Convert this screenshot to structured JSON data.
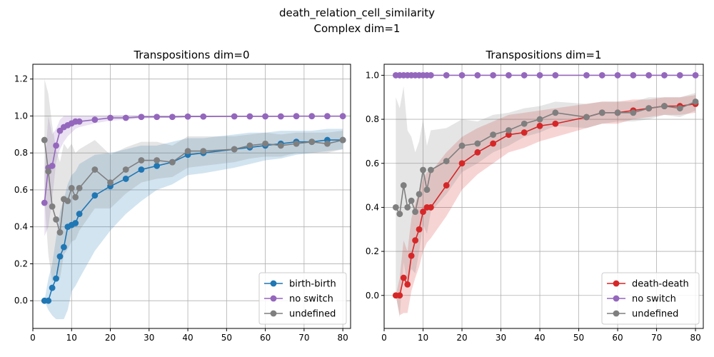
{
  "figure": {
    "suptitle_line1": "death_relation_cell_similarity",
    "suptitle_line2": "Complex dim=1"
  },
  "colors": {
    "birth": "#1f77b4",
    "death": "#d62728",
    "noswitch": "#9467bd",
    "undefined": "#7f7f7f",
    "grid": "#b0b0b0"
  },
  "chart_data": [
    {
      "type": "line",
      "title": "Transpositions dim=0",
      "xlabel": "",
      "ylabel": "",
      "xlim": [
        0,
        82
      ],
      "ylim": [
        -0.15,
        1.28
      ],
      "xticks": [
        0,
        10,
        20,
        30,
        40,
        50,
        60,
        70,
        80
      ],
      "yticks": [
        0.0,
        0.2,
        0.4,
        0.6,
        0.8,
        1.0,
        1.2
      ],
      "grid": true,
      "legend_position": "lower-right",
      "series": [
        {
          "name": "birth-birth",
          "color_key": "birth",
          "x": [
            3,
            4,
            5,
            6,
            7,
            8,
            9,
            10,
            11,
            12,
            16,
            20,
            24,
            28,
            32,
            36,
            40,
            44,
            52,
            56,
            60,
            64,
            68,
            72,
            76,
            80
          ],
          "y": [
            0.0,
            0.0,
            0.07,
            0.12,
            0.24,
            0.29,
            0.4,
            0.41,
            0.42,
            0.47,
            0.57,
            0.62,
            0.66,
            0.71,
            0.73,
            0.75,
            0.79,
            0.8,
            0.82,
            0.83,
            0.84,
            0.85,
            0.86,
            0.86,
            0.87,
            0.87
          ],
          "lower": [
            0.0,
            -0.05,
            -0.08,
            -0.1,
            -0.1,
            -0.1,
            -0.05,
            0.05,
            0.08,
            0.12,
            0.27,
            0.38,
            0.47,
            0.54,
            0.6,
            0.63,
            0.68,
            0.69,
            0.72,
            0.74,
            0.76,
            0.77,
            0.79,
            0.8,
            0.81,
            0.82
          ],
          "upper": [
            0.0,
            0.12,
            0.2,
            0.34,
            0.48,
            0.55,
            0.63,
            0.68,
            0.7,
            0.74,
            0.79,
            0.8,
            0.82,
            0.84,
            0.84,
            0.86,
            0.88,
            0.88,
            0.9,
            0.91,
            0.91,
            0.92,
            0.92,
            0.92,
            0.93,
            0.93
          ]
        },
        {
          "name": "no switch",
          "color_key": "noswitch",
          "x": [
            3,
            4,
            5,
            6,
            7,
            8,
            9,
            10,
            11,
            12,
            16,
            20,
            24,
            28,
            32,
            36,
            40,
            44,
            52,
            56,
            60,
            64,
            68,
            72,
            76,
            80
          ],
          "y": [
            0.53,
            0.72,
            0.73,
            0.84,
            0.92,
            0.94,
            0.95,
            0.96,
            0.97,
            0.97,
            0.98,
            0.99,
            0.99,
            0.995,
            0.995,
            0.995,
            0.997,
            0.997,
            0.998,
            0.998,
            0.998,
            0.998,
            0.999,
            0.999,
            0.999,
            0.999
          ],
          "lower": [
            0.35,
            0.4,
            0.55,
            0.75,
            0.82,
            0.86,
            0.89,
            0.91,
            0.93,
            0.94,
            0.96,
            0.975,
            0.98,
            0.985,
            0.99,
            0.99,
            0.992,
            0.993,
            0.995,
            0.995,
            0.996,
            0.996,
            0.997,
            0.997,
            0.997,
            0.997
          ],
          "upper": [
            0.7,
            1.0,
            0.9,
            0.93,
            0.98,
            1.0,
            1.0,
            1.0,
            1.0,
            1.0,
            1.0,
            1.0,
            1.0,
            1.0,
            1.0,
            1.0,
            1.0,
            1.0,
            1.0,
            1.0,
            1.0,
            1.0,
            1.0,
            1.0,
            1.0,
            1.0
          ]
        },
        {
          "name": "undefined",
          "color_key": "undefined",
          "x": [
            3,
            4,
            5,
            6,
            7,
            8,
            9,
            10,
            11,
            12,
            16,
            20,
            24,
            28,
            32,
            36,
            40,
            44,
            52,
            56,
            60,
            64,
            68,
            72,
            76,
            80
          ],
          "y": [
            0.87,
            0.7,
            0.51,
            0.44,
            0.37,
            0.55,
            0.54,
            0.61,
            0.56,
            0.61,
            0.71,
            0.64,
            0.71,
            0.76,
            0.76,
            0.75,
            0.81,
            0.81,
            0.82,
            0.84,
            0.85,
            0.84,
            0.85,
            0.86,
            0.85,
            0.87
          ],
          "lower": [
            0.55,
            0.25,
            0.1,
            0.15,
            0.12,
            0.25,
            0.28,
            0.32,
            0.33,
            0.38,
            0.5,
            0.5,
            0.58,
            0.64,
            0.66,
            0.67,
            0.72,
            0.73,
            0.75,
            0.77,
            0.78,
            0.78,
            0.8,
            0.8,
            0.8,
            0.82
          ],
          "upper": [
            1.2,
            1.12,
            0.95,
            0.82,
            0.75,
            0.85,
            0.82,
            0.85,
            0.8,
            0.82,
            0.87,
            0.79,
            0.83,
            0.86,
            0.86,
            0.84,
            0.89,
            0.89,
            0.89,
            0.9,
            0.91,
            0.9,
            0.91,
            0.91,
            0.91,
            0.92
          ]
        }
      ]
    },
    {
      "type": "line",
      "title": "Transpositions dim=1",
      "xlabel": "",
      "ylabel": "",
      "xlim": [
        0,
        82
      ],
      "ylim": [
        -0.15,
        1.05
      ],
      "xticks": [
        0,
        10,
        20,
        30,
        40,
        50,
        60,
        70,
        80
      ],
      "yticks": [
        0.0,
        0.2,
        0.4,
        0.6,
        0.8,
        1.0
      ],
      "grid": true,
      "legend_position": "lower-right",
      "series": [
        {
          "name": "death-death",
          "color_key": "death",
          "x": [
            3,
            4,
            5,
            6,
            7,
            8,
            9,
            10,
            11,
            12,
            16,
            20,
            24,
            28,
            32,
            36,
            40,
            44,
            52,
            56,
            60,
            64,
            68,
            72,
            76,
            80
          ],
          "y": [
            0.0,
            0.0,
            0.08,
            0.05,
            0.18,
            0.25,
            0.3,
            0.38,
            0.4,
            0.4,
            0.5,
            0.6,
            0.65,
            0.69,
            0.73,
            0.74,
            0.77,
            0.78,
            0.81,
            0.83,
            0.83,
            0.84,
            0.85,
            0.86,
            0.86,
            0.87
          ],
          "lower": [
            0.0,
            -0.09,
            -0.08,
            -0.08,
            0.02,
            0.08,
            0.13,
            0.2,
            0.24,
            0.26,
            0.36,
            0.48,
            0.55,
            0.6,
            0.65,
            0.67,
            0.7,
            0.72,
            0.76,
            0.78,
            0.78,
            0.8,
            0.81,
            0.82,
            0.82,
            0.83
          ],
          "upper": [
            0.0,
            0.08,
            0.25,
            0.2,
            0.35,
            0.42,
            0.47,
            0.53,
            0.56,
            0.56,
            0.65,
            0.72,
            0.76,
            0.79,
            0.82,
            0.83,
            0.84,
            0.85,
            0.87,
            0.88,
            0.88,
            0.89,
            0.89,
            0.9,
            0.9,
            0.91
          ]
        },
        {
          "name": "no switch",
          "color_key": "noswitch",
          "x": [
            3,
            4,
            5,
            6,
            7,
            8,
            9,
            10,
            11,
            12,
            16,
            20,
            24,
            28,
            32,
            36,
            40,
            44,
            52,
            56,
            60,
            64,
            68,
            72,
            76,
            80
          ],
          "y": [
            1.0,
            1.0,
            1.0,
            1.0,
            1.0,
            1.0,
            1.0,
            1.0,
            1.0,
            1.0,
            1.0,
            1.0,
            1.0,
            1.0,
            1.0,
            1.0,
            1.0,
            1.0,
            1.0,
            1.0,
            1.0,
            1.0,
            1.0,
            1.0,
            1.0,
            1.0
          ],
          "lower": [
            1.0,
            1.0,
            1.0,
            1.0,
            1.0,
            1.0,
            1.0,
            1.0,
            1.0,
            1.0,
            1.0,
            1.0,
            1.0,
            1.0,
            1.0,
            1.0,
            1.0,
            1.0,
            1.0,
            1.0,
            1.0,
            1.0,
            1.0,
            1.0,
            1.0,
            1.0
          ],
          "upper": [
            1.0,
            1.0,
            1.0,
            1.0,
            1.0,
            1.0,
            1.0,
            1.0,
            1.0,
            1.0,
            1.0,
            1.0,
            1.0,
            1.0,
            1.0,
            1.0,
            1.0,
            1.0,
            1.0,
            1.0,
            1.0,
            1.0,
            1.0,
            1.0,
            1.0,
            1.0
          ]
        },
        {
          "name": "undefined",
          "color_key": "undefined",
          "x": [
            3,
            4,
            5,
            6,
            7,
            8,
            9,
            10,
            11,
            12,
            16,
            20,
            24,
            28,
            32,
            36,
            40,
            44,
            52,
            56,
            60,
            64,
            68,
            72,
            76,
            80
          ],
          "y": [
            0.4,
            0.37,
            0.5,
            0.4,
            0.43,
            0.38,
            0.46,
            0.57,
            0.48,
            0.57,
            0.61,
            0.68,
            0.69,
            0.73,
            0.75,
            0.78,
            0.8,
            0.83,
            0.81,
            0.83,
            0.83,
            0.83,
            0.85,
            0.86,
            0.85,
            0.88
          ],
          "lower": [
            0.0,
            -0.1,
            0.15,
            0.05,
            0.12,
            0.1,
            0.2,
            0.32,
            0.28,
            0.38,
            0.46,
            0.56,
            0.6,
            0.65,
            0.68,
            0.72,
            0.74,
            0.77,
            0.76,
            0.78,
            0.79,
            0.79,
            0.8,
            0.82,
            0.81,
            0.84
          ],
          "upper": [
            0.9,
            0.85,
            0.95,
            0.75,
            0.72,
            0.65,
            0.7,
            0.8,
            0.68,
            0.75,
            0.76,
            0.8,
            0.79,
            0.82,
            0.83,
            0.85,
            0.86,
            0.88,
            0.87,
            0.88,
            0.88,
            0.88,
            0.9,
            0.9,
            0.9,
            0.92
          ]
        }
      ]
    }
  ]
}
